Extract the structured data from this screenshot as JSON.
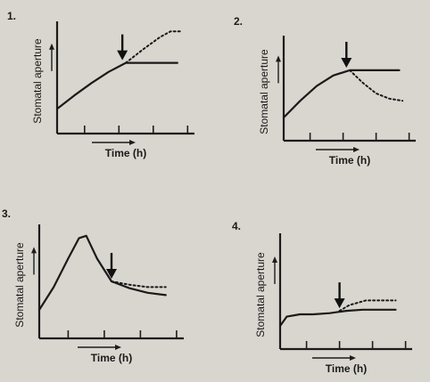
{
  "chart_data": [
    {
      "type": "line",
      "panel_label": "1.",
      "xlabel": "Time (h)",
      "ylabel": "Stomatal aperture",
      "xlim": [
        0,
        4
      ],
      "ylim": [
        0,
        100
      ],
      "arrow_x": 1.9,
      "series": [
        {
          "style": "solid",
          "x": [
            0,
            0.5,
            1,
            1.5,
            2,
            2.5,
            3,
            3.5
          ],
          "y": [
            22,
            34,
            45,
            55,
            63,
            63,
            63,
            63
          ]
        },
        {
          "style": "dotted",
          "x": [
            2,
            2.5,
            3,
            3.3,
            3.6
          ],
          "y": [
            63,
            75,
            86,
            91,
            91
          ]
        }
      ],
      "ticks_x": [
        0.8,
        1.8,
        2.8,
        3.8
      ]
    },
    {
      "type": "line",
      "panel_label": "2.",
      "xlabel": "Time (h)",
      "ylabel": "Stomatal aperture",
      "xlim": [
        0,
        4
      ],
      "ylim": [
        0,
        100
      ],
      "arrow_x": 1.9,
      "series": [
        {
          "style": "solid",
          "x": [
            0,
            0.5,
            1,
            1.5,
            2,
            2.5,
            3,
            3.5
          ],
          "y": [
            22,
            38,
            52,
            62,
            67,
            67,
            67,
            67
          ]
        },
        {
          "style": "dotted",
          "x": [
            2,
            2.4,
            2.8,
            3.2,
            3.6
          ],
          "y": [
            67,
            55,
            45,
            40,
            38
          ]
        }
      ],
      "ticks_x": [
        0.8,
        1.8,
        2.8,
        3.8
      ]
    },
    {
      "type": "line",
      "panel_label": "3.",
      "xlabel": "Time (h)",
      "ylabel": "Stomatal aperture",
      "xlim": [
        0,
        4
      ],
      "ylim": [
        0,
        100
      ],
      "arrow_x": 2.0,
      "series": [
        {
          "style": "solid",
          "x": [
            0,
            0.4,
            0.8,
            1.1,
            1.3,
            1.6,
            2,
            2.5,
            3,
            3.5
          ],
          "y": [
            25,
            45,
            70,
            88,
            90,
            70,
            50,
            44,
            40,
            38
          ]
        },
        {
          "style": "dotted",
          "x": [
            2,
            2.5,
            3,
            3.5
          ],
          "y": [
            50,
            47,
            45,
            45
          ]
        }
      ],
      "ticks_x": [
        0.8,
        1.8,
        2.8,
        3.8
      ]
    },
    {
      "type": "line",
      "panel_label": "4.",
      "xlabel": "Time (h)",
      "ylabel": "Stomatal aperture",
      "xlim": [
        0,
        4
      ],
      "ylim": [
        0,
        100
      ],
      "arrow_x": 1.8,
      "series": [
        {
          "style": "solid",
          "x": [
            0,
            0.2,
            0.6,
            1,
            1.5,
            2,
            2.5,
            3,
            3.5
          ],
          "y": [
            20,
            28,
            30,
            30,
            31,
            33,
            34,
            34,
            34
          ]
        },
        {
          "style": "dotted",
          "x": [
            1.8,
            2.1,
            2.6,
            3,
            3.5
          ],
          "y": [
            33,
            38,
            42,
            42,
            42
          ]
        }
      ],
      "ticks_x": [
        0.8,
        1.8,
        2.8,
        3.8
      ]
    }
  ]
}
